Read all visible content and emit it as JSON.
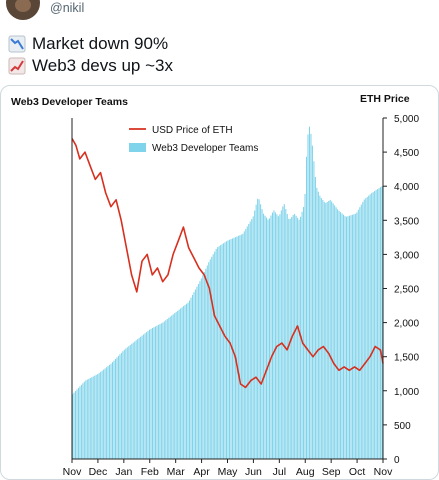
{
  "tweet": {
    "handle": "@nikil",
    "line1_icon": "chart-decreasing-icon",
    "line1": "Market down 90%",
    "line2_icon": "chart-increasing-icon",
    "line2": "Web3 devs up ~3x"
  },
  "colors": {
    "bars": "#7fd3ea",
    "line": "#d7301f",
    "text": "#0f1419",
    "muted": "#536471"
  },
  "chart_data": {
    "type": "bar",
    "title": "Web3 Developer Teams",
    "right_axis_title": "ETH Price",
    "ylim_right": [
      0,
      5000
    ],
    "y_ticks_right": [
      "0",
      "500",
      "1,000",
      "1,500",
      "2,000",
      "2,500",
      "3,000",
      "3,500",
      "4,000",
      "4,500",
      "5,000"
    ],
    "x_ticks": [
      "Nov",
      "Dec",
      "Jan",
      "Feb",
      "Mar",
      "Apr",
      "May",
      "Jun",
      "Jul",
      "Aug",
      "Sep",
      "Oct",
      "Nov"
    ],
    "legend": [
      "USD Price of ETH",
      "Web3 Developer Teams"
    ],
    "legend_position": "top-left",
    "series": [
      {
        "name": "Web3 Developer Teams",
        "kind": "bar",
        "x_months": [
          0,
          0.5,
          1,
          1.5,
          2,
          2.5,
          3,
          3.5,
          4,
          4.5,
          5,
          5.3,
          5.6,
          6,
          6.3,
          6.6,
          7,
          7.2,
          7.4,
          7.6,
          7.8,
          8,
          8.2,
          8.4,
          8.6,
          8.8,
          9,
          9.1,
          9.2,
          9.3,
          9.45,
          9.6,
          9.8,
          10,
          10.3,
          10.6,
          11,
          11.3,
          11.6,
          12
        ],
        "values": [
          950,
          1150,
          1250,
          1400,
          1600,
          1750,
          1900,
          2000,
          2150,
          2300,
          2650,
          2900,
          3100,
          3200,
          3250,
          3300,
          3550,
          3850,
          3600,
          3500,
          3650,
          3550,
          3750,
          3500,
          3600,
          3500,
          3750,
          4700,
          4900,
          4600,
          4000,
          3850,
          3750,
          3800,
          3650,
          3550,
          3600,
          3800,
          3900,
          4000
        ]
      },
      {
        "name": "USD Price of ETH",
        "kind": "line",
        "x_months": [
          0,
          0.15,
          0.3,
          0.5,
          0.7,
          0.9,
          1.1,
          1.3,
          1.5,
          1.7,
          1.9,
          2.1,
          2.3,
          2.5,
          2.7,
          2.9,
          3.1,
          3.3,
          3.5,
          3.7,
          3.9,
          4.1,
          4.3,
          4.5,
          4.7,
          4.9,
          5.1,
          5.3,
          5.5,
          5.7,
          5.9,
          6.1,
          6.3,
          6.5,
          6.7,
          6.9,
          7.1,
          7.3,
          7.5,
          7.7,
          7.9,
          8.1,
          8.3,
          8.5,
          8.7,
          8.9,
          9.1,
          9.3,
          9.5,
          9.7,
          9.9,
          10.1,
          10.3,
          10.5,
          10.7,
          10.9,
          11.1,
          11.3,
          11.5,
          11.7,
          11.9,
          12
        ],
        "values": [
          4700,
          4600,
          4400,
          4500,
          4300,
          4100,
          4200,
          3900,
          3700,
          3800,
          3500,
          3100,
          2700,
          2450,
          2900,
          3000,
          2700,
          2800,
          2600,
          2700,
          3000,
          3200,
          3400,
          3100,
          2950,
          2800,
          2700,
          2500,
          2100,
          1950,
          1800,
          1700,
          1500,
          1100,
          1050,
          1150,
          1200,
          1100,
          1300,
          1500,
          1650,
          1700,
          1600,
          1800,
          1950,
          1700,
          1600,
          1500,
          1600,
          1650,
          1550,
          1400,
          1300,
          1350,
          1300,
          1350,
          1300,
          1400,
          1500,
          1650,
          1600,
          1400
        ]
      }
    ]
  }
}
